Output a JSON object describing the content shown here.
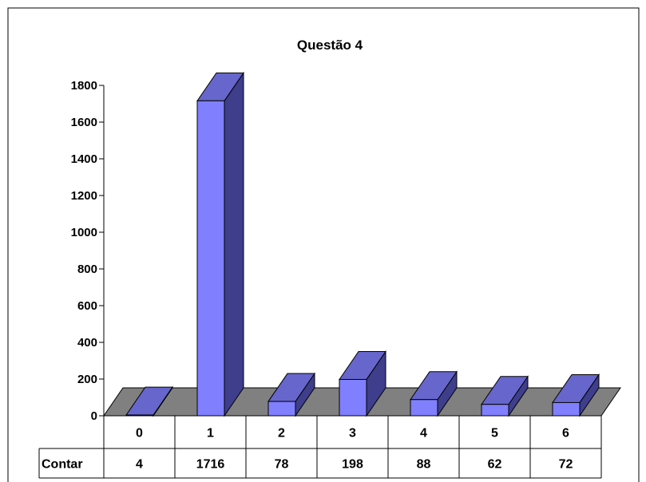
{
  "chart_data": {
    "type": "bar",
    "title": "Questão 4",
    "categories": [
      "0",
      "1",
      "2",
      "3",
      "4",
      "5",
      "6"
    ],
    "series": [
      {
        "name": "Contar",
        "values": [
          4,
          1716,
          78,
          198,
          88,
          62,
          72
        ]
      }
    ],
    "ylim": [
      0,
      1800
    ],
    "yticks": [
      0,
      200,
      400,
      600,
      800,
      1000,
      1200,
      1400,
      1600,
      1800
    ],
    "grid": false,
    "legend": "none",
    "data_table": true,
    "colors": {
      "bar_front": "#8080ff",
      "bar_top": "#6666cc",
      "bar_side": "#3e3e8c",
      "floor": "#808080"
    }
  }
}
